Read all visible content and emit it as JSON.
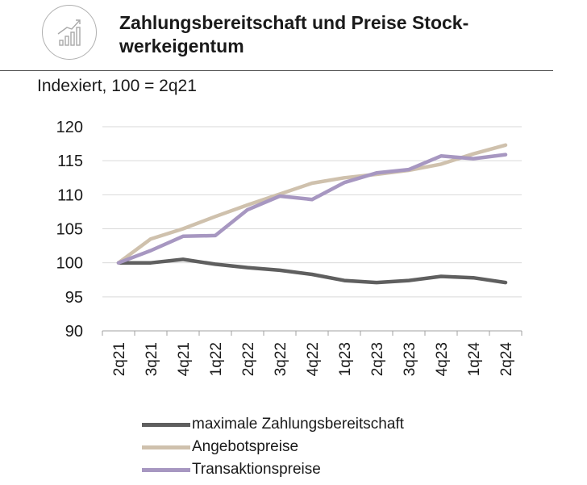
{
  "header": {
    "title": "Zahlungsbereitschaft und Preise Stock- werkeigentum",
    "subtitle": "Indexiert, 100 = 2q21",
    "logo_icon": "bar-chart-trend-icon"
  },
  "chart_data": {
    "type": "line",
    "title": "Zahlungsbereitschaft und Preise Stock- werkeigentum",
    "subtitle": "Indexiert, 100 = 2q21",
    "categories": [
      "2q21",
      "3q21",
      "4q21",
      "1q22",
      "2q22",
      "3q22",
      "4q22",
      "1q23",
      "2q23",
      "3q23",
      "4q23",
      "1q24",
      "2q24"
    ],
    "ylim": [
      90,
      120
    ],
    "yticks": [
      90,
      95,
      100,
      105,
      110,
      115,
      120
    ],
    "grid": true,
    "legend_position": "bottom",
    "series": [
      {
        "name": "maximale Zahlungsbereitschaft",
        "color": "#5f5f5f",
        "values": [
          100,
          100,
          100.5,
          99.8,
          99.3,
          98.9,
          98.3,
          97.4,
          97.1,
          97.4,
          98.0,
          97.8,
          97.1
        ]
      },
      {
        "name": "Angebotspreise",
        "color": "#cfc1ad",
        "values": [
          100,
          103.5,
          105.0,
          106.8,
          108.5,
          110.1,
          111.7,
          112.5,
          113.0,
          113.6,
          114.5,
          116.0,
          117.3
        ]
      },
      {
        "name": "Transaktionspreise",
        "color": "#a797c1",
        "values": [
          100,
          101.8,
          103.9,
          104.0,
          107.8,
          109.8,
          109.3,
          111.8,
          113.2,
          113.7,
          115.7,
          115.3,
          115.9
        ]
      }
    ]
  }
}
